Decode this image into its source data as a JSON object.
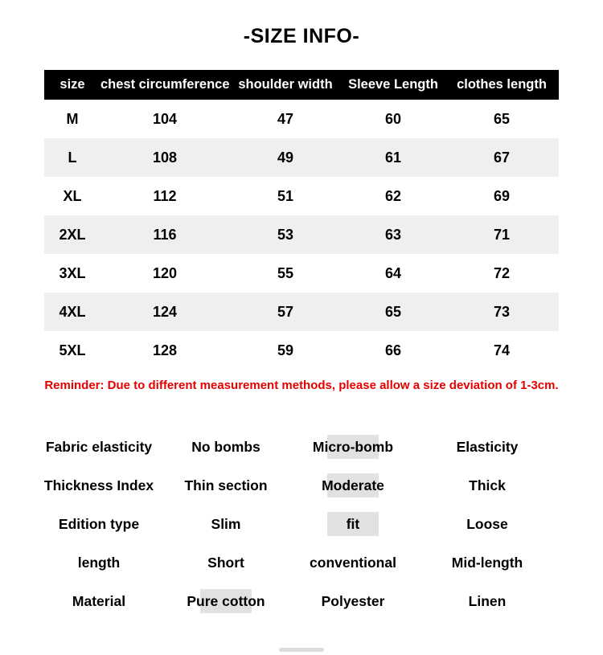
{
  "title": "-SIZE INFO-",
  "size_table": {
    "headers": [
      "size",
      "chest circumference",
      "shoulder width",
      "Sleeve Length",
      "clothes length"
    ],
    "rows": [
      [
        "M",
        "104",
        "47",
        "60",
        "65"
      ],
      [
        "L",
        "108",
        "49",
        "61",
        "67"
      ],
      [
        "XL",
        "112",
        "51",
        "62",
        "69"
      ],
      [
        "2XL",
        "116",
        "53",
        "63",
        "71"
      ],
      [
        "3XL",
        "120",
        "55",
        "64",
        "72"
      ],
      [
        "4XL",
        "124",
        "57",
        "65",
        "73"
      ],
      [
        "5XL",
        "128",
        "59",
        "66",
        "74"
      ]
    ]
  },
  "reminder": "Reminder: Due to different measurement methods, please allow a size deviation of 1-3cm.",
  "attribute_grid": {
    "rows": [
      {
        "label": "Fabric elasticity",
        "options": [
          {
            "text": "No bombs",
            "selected": false
          },
          {
            "text": "Micro-bomb",
            "selected": true
          },
          {
            "text": "Elasticity",
            "selected": false
          }
        ]
      },
      {
        "label": "Thickness Index",
        "options": [
          {
            "text": "Thin section",
            "selected": false
          },
          {
            "text": "Moderate",
            "selected": true
          },
          {
            "text": "Thick",
            "selected": false
          }
        ]
      },
      {
        "label": "Edition type",
        "options": [
          {
            "text": "Slim",
            "selected": false
          },
          {
            "text": "fit",
            "selected": true
          },
          {
            "text": "Loose",
            "selected": false
          }
        ]
      },
      {
        "label": "length",
        "options": [
          {
            "text": "Short",
            "selected": false
          },
          {
            "text": "conventional",
            "selected": false
          },
          {
            "text": "Mid-length",
            "selected": false
          }
        ]
      },
      {
        "label": "Material",
        "options": [
          {
            "text": "Pure cotton",
            "selected": true
          },
          {
            "text": "Polyester",
            "selected": false
          },
          {
            "text": "Linen",
            "selected": false
          }
        ]
      }
    ]
  },
  "colors": {
    "table_header_bg": "#000000",
    "table_header_text": "#ffffff",
    "row_alt_bg": "#efefef",
    "reminder_text": "#e60000",
    "highlight_bg": "#e1e1e1"
  }
}
